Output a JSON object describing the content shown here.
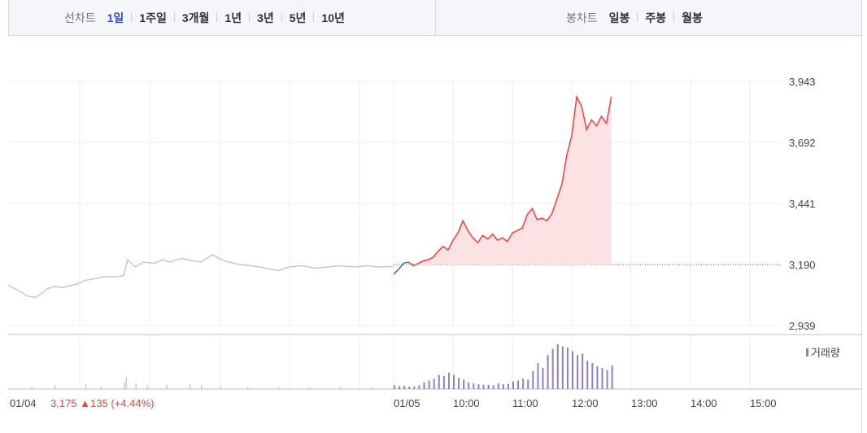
{
  "tabs": {
    "line_label": "선차트",
    "line_periods": [
      "1일",
      "1주일",
      "3개월",
      "1년",
      "3년",
      "5년",
      "10년"
    ],
    "active_period": 0,
    "candle_label": "봉차트",
    "candle_periods": [
      "일봉",
      "주봉",
      "월봉"
    ]
  },
  "colors": {
    "up": "#ff3b3b",
    "down": "#3a6fd8",
    "prev": "#c8c8c8",
    "volume": "#8f7fc6",
    "fill": "#fde2e4",
    "grid": "#ececec"
  },
  "summary": {
    "date": "01/04",
    "price": "3,175",
    "arrow": "▲",
    "change": "135",
    "rate": "(+4.44%)"
  },
  "volume_legend": "거래량",
  "chart_data": {
    "type": "line",
    "ylim": [
      2939,
      3943
    ],
    "yticks": [
      "3,943",
      "3,692",
      "3,441",
      "3,190",
      "2,939"
    ],
    "ytick_values": [
      3943,
      3692,
      3441,
      3190,
      2939
    ],
    "baseline": 3190,
    "xticks": [
      "01/04",
      "01/05",
      "10:00",
      "11:00",
      "12:00",
      "13:00",
      "14:00",
      "15:00"
    ],
    "prev_day": {
      "x": [
        0,
        0.03,
        0.05,
        0.07,
        0.09,
        0.1,
        0.12,
        0.14,
        0.18,
        0.2,
        0.22,
        0.25,
        0.28,
        0.3,
        0.31,
        0.33,
        0.35,
        0.38,
        0.4,
        0.42,
        0.45,
        0.48,
        0.5,
        0.53,
        0.56,
        0.6,
        0.63,
        0.66,
        0.7,
        0.73,
        0.76,
        0.8,
        0.83,
        0.86,
        0.9,
        0.93,
        0.96,
        1.0
      ],
      "y": [
        3105,
        3080,
        3060,
        3055,
        3075,
        3090,
        3100,
        3095,
        3110,
        3125,
        3130,
        3140,
        3140,
        3145,
        3210,
        3180,
        3200,
        3195,
        3210,
        3200,
        3215,
        3205,
        3200,
        3230,
        3205,
        3190,
        3185,
        3178,
        3165,
        3180,
        3185,
        3175,
        3180,
        3185,
        3180,
        3185,
        3180,
        3182
      ]
    },
    "today": {
      "time": [
        "09:00",
        "09:05",
        "09:10",
        "09:15",
        "09:20",
        "09:25",
        "09:30",
        "09:35",
        "09:40",
        "09:45",
        "09:50",
        "09:55",
        "10:00",
        "10:05",
        "10:10",
        "10:15",
        "10:20",
        "10:25",
        "10:30",
        "10:35",
        "10:40",
        "10:45",
        "10:50",
        "10:55",
        "11:00",
        "11:05",
        "11:10",
        "11:15",
        "11:20",
        "11:25",
        "11:30",
        "11:35",
        "11:40",
        "11:45",
        "11:50",
        "11:55",
        "12:00",
        "12:05",
        "12:10",
        "12:15",
        "12:20",
        "12:25",
        "12:30",
        "12:35",
        "12:40"
      ],
      "price": [
        3150,
        3170,
        3195,
        3200,
        3185,
        3195,
        3205,
        3210,
        3220,
        3245,
        3265,
        3250,
        3290,
        3320,
        3370,
        3330,
        3300,
        3280,
        3310,
        3295,
        3315,
        3290,
        3300,
        3285,
        3320,
        3330,
        3340,
        3395,
        3420,
        3375,
        3380,
        3370,
        3400,
        3460,
        3520,
        3640,
        3720,
        3880,
        3840,
        3745,
        3785,
        3760,
        3800,
        3770,
        3880
      ]
    },
    "volume_prev": {
      "x": [
        0.06,
        0.12,
        0.2,
        0.24,
        0.3,
        0.305,
        0.33,
        0.36,
        0.41,
        0.47,
        0.5,
        0.55,
        0.62,
        0.7,
        0.78,
        0.86,
        0.94
      ],
      "v": [
        5,
        8,
        10,
        6,
        14,
        25,
        12,
        7,
        9,
        10,
        8,
        6,
        5,
        5,
        4,
        5,
        4
      ]
    },
    "volume_today": [
      8,
      6,
      7,
      5,
      6,
      8,
      14,
      18,
      22,
      30,
      28,
      35,
      30,
      24,
      20,
      14,
      12,
      10,
      9,
      9,
      8,
      12,
      10,
      11,
      16,
      18,
      22,
      20,
      38,
      55,
      45,
      72,
      85,
      95,
      90,
      88,
      80,
      72,
      75,
      60,
      55,
      48,
      45,
      40,
      50
    ]
  }
}
